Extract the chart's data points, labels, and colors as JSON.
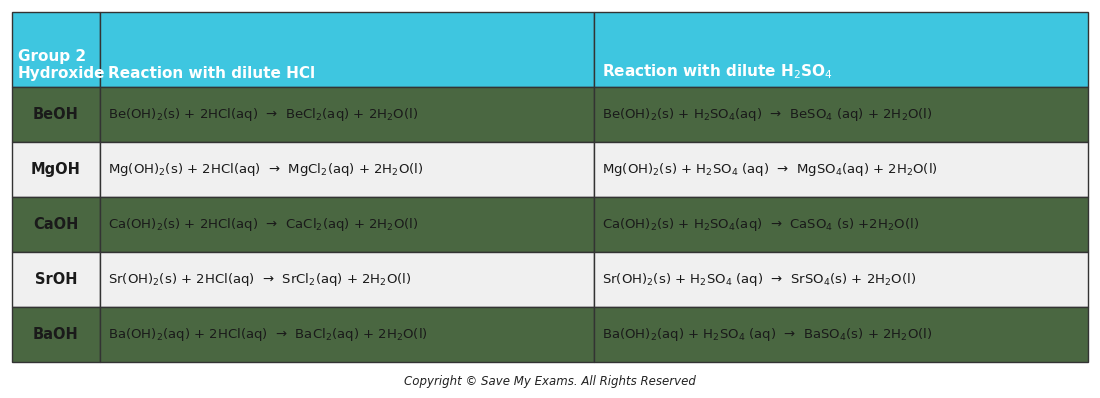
{
  "header_bg": "#3ec6e0",
  "row_colors": [
    "#4a6741",
    "#f0f0f0",
    "#4a6741",
    "#f0f0f0",
    "#4a6741"
  ],
  "header_text_color": "#ffffff",
  "body_text_color": "#1a1a1a",
  "border_color": "#333333",
  "col_header": "Group 2\nHydroxide",
  "col1_header": "Reaction with dilute HCl",
  "col2_header": "Reaction with dilute H$_2$SO$_4$",
  "rows": [
    {
      "hydroxide": "BeOH",
      "hcl": "Be(OH)$_2$(s) + 2HCl(aq)  →  BeCl$_2$(aq) + 2H$_2$O(l)",
      "h2so4": "Be(OH)$_2$(s) + H$_2$SO$_4$(aq)  →  BeSO$_4$ (aq) + 2H$_2$O(l)"
    },
    {
      "hydroxide": "MgOH",
      "hcl": "Mg(OH)$_2$(s) + 2HCl(aq)  →  MgCl$_2$(aq) + 2H$_2$O(l)",
      "h2so4": "Mg(OH)$_2$(s) + H$_2$SO$_4$ (aq)  →  MgSO$_4$(aq) + 2H$_2$O(l)"
    },
    {
      "hydroxide": "CaOH",
      "hcl": "Ca(OH)$_2$(s) + 2HCl(aq)  →  CaCl$_2$(aq) + 2H$_2$O(l)",
      "h2so4": "Ca(OH)$_2$(s) + H$_2$SO$_4$(aq)  →  CaSO$_4$ (s) +2H$_2$O(l)"
    },
    {
      "hydroxide": "SrOH",
      "hcl": "Sr(OH)$_2$(s) + 2HCl(aq)  →  SrCl$_2$(aq) + 2H$_2$O(l)",
      "h2so4": "Sr(OH)$_2$(s) + H$_2$SO$_4$ (aq)  →  SrSO$_4$(s) + 2H$_2$O(l)"
    },
    {
      "hydroxide": "BaOH",
      "hcl": "Ba(OH)$_2$(aq) + 2HCl(aq)  →  BaCl$_2$(aq) + 2H$_2$O(l)",
      "h2so4": "Ba(OH)$_2$(aq) + H$_2$SO$_4$ (aq)  →  BaSO$_4$(s) + 2H$_2$O(l)"
    }
  ],
  "footer_text": "Copyright © Save My Exams. All Rights Reserved",
  "fig_width": 11.0,
  "fig_height": 3.98,
  "dpi": 100
}
